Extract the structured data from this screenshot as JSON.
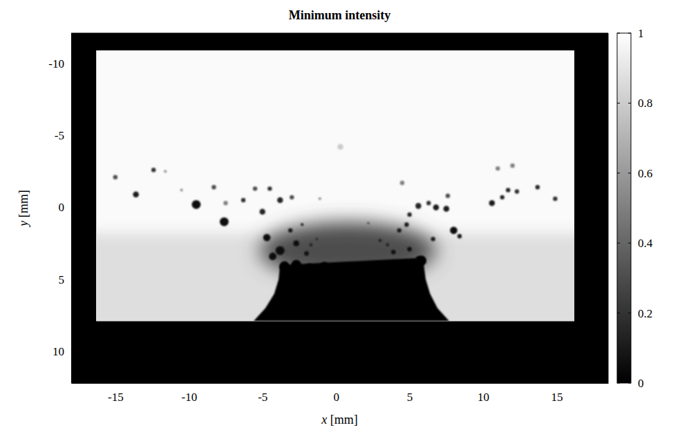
{
  "chart_data": {
    "type": "image",
    "title": "Minimum intensity",
    "x_label": "x [mm]",
    "y_label": "y [mm]",
    "xlim": [
      -18.0,
      18.5
    ],
    "ylim": [
      -12.1,
      12.2
    ],
    "xticks": [
      -15,
      -10,
      -5,
      0,
      5,
      10,
      15
    ],
    "yticks": [
      -10,
      -5,
      0,
      5,
      10
    ],
    "colorbar": {
      "range": [
        0,
        1
      ],
      "ticks": [
        0,
        0.2,
        0.4,
        0.6,
        0.8,
        1
      ]
    },
    "background": 0,
    "field": {
      "x": [
        -16.3,
        16.2
      ],
      "y": [
        -10.9,
        7.9
      ],
      "value": 0.98
    },
    "lower_band": {
      "y": [
        1.8,
        7.9
      ],
      "value": 0.87
    },
    "shadow": {
      "x": 0.8,
      "y": 3.0,
      "rx": 6.0,
      "ry": 2.0,
      "value": 0.3
    },
    "core": {
      "x": [
        -3.8,
        -3.9,
        -4.2,
        -4.8,
        -5.6,
        7.7,
        6.9,
        6.4,
        6.1,
        5.9
      ],
      "y": [
        4.0,
        5.0,
        6.0,
        7.0,
        7.9,
        7.9,
        7.0,
        6.0,
        5.0,
        3.5
      ],
      "value": 0
    },
    "droplets": [
      {
        "x": -15.0,
        "y": -2.1,
        "r": 0.15,
        "value": 0.3
      },
      {
        "x": -13.6,
        "y": -0.9,
        "r": 0.2,
        "value": 0.1
      },
      {
        "x": -12.4,
        "y": -2.6,
        "r": 0.15,
        "value": 0.2
      },
      {
        "x": -11.6,
        "y": -2.5,
        "r": 0.1,
        "value": 0.6
      },
      {
        "x": -10.5,
        "y": -1.2,
        "r": 0.1,
        "value": 0.6
      },
      {
        "x": -9.5,
        "y": -0.2,
        "r": 0.3,
        "value": 0.05
      },
      {
        "x": -8.3,
        "y": -1.4,
        "r": 0.15,
        "value": 0.3
      },
      {
        "x": -7.6,
        "y": 1.0,
        "r": 0.3,
        "value": 0.05
      },
      {
        "x": -7.5,
        "y": -0.3,
        "r": 0.15,
        "value": 0.5
      },
      {
        "x": -6.3,
        "y": -0.5,
        "r": 0.15,
        "value": 0.2
      },
      {
        "x": -5.5,
        "y": -1.3,
        "r": 0.15,
        "value": 0.3
      },
      {
        "x": -5.0,
        "y": 0.3,
        "r": 0.2,
        "value": 0.15
      },
      {
        "x": -4.5,
        "y": -1.3,
        "r": 0.15,
        "value": 0.2
      },
      {
        "x": -3.8,
        "y": -0.5,
        "r": 0.2,
        "value": 0.15
      },
      {
        "x": -3.0,
        "y": -0.7,
        "r": 0.15,
        "value": 0.3
      },
      {
        "x": -1.1,
        "y": -0.6,
        "r": 0.1,
        "value": 0.6
      },
      {
        "x": -4.7,
        "y": 2.1,
        "r": 0.25,
        "value": 0.05
      },
      {
        "x": -3.8,
        "y": 3.0,
        "r": 0.3,
        "value": 0.03
      },
      {
        "x": -4.3,
        "y": 3.4,
        "r": 0.25,
        "value": 0.03
      },
      {
        "x": -2.7,
        "y": 2.5,
        "r": 0.2,
        "value": 0.05
      },
      {
        "x": -3.1,
        "y": 1.6,
        "r": 0.15,
        "value": 0.1
      },
      {
        "x": -2.3,
        "y": 1.2,
        "r": 0.1,
        "value": 0.15
      },
      {
        "x": -2.0,
        "y": 3.2,
        "r": 0.15,
        "value": 0.05
      },
      {
        "x": -1.7,
        "y": 2.6,
        "r": 0.1,
        "value": 0.1
      },
      {
        "x": -1.3,
        "y": 2.2,
        "r": 0.08,
        "value": 0.15
      },
      {
        "x": 0.3,
        "y": -4.2,
        "r": 0.2,
        "value": 0.8
      },
      {
        "x": 2.2,
        "y": 1.1,
        "r": 0.08,
        "value": 0.3
      },
      {
        "x": 3.0,
        "y": 2.3,
        "r": 0.1,
        "value": 0.1
      },
      {
        "x": 3.5,
        "y": 2.6,
        "r": 0.1,
        "value": 0.1
      },
      {
        "x": 3.9,
        "y": 3.1,
        "r": 0.15,
        "value": 0.05
      },
      {
        "x": 4.3,
        "y": 1.6,
        "r": 0.15,
        "value": 0.1
      },
      {
        "x": 4.8,
        "y": 1.2,
        "r": 0.15,
        "value": 0.1
      },
      {
        "x": 5.0,
        "y": 0.5,
        "r": 0.15,
        "value": 0.15
      },
      {
        "x": 4.5,
        "y": -1.7,
        "r": 0.15,
        "value": 0.5
      },
      {
        "x": 5.6,
        "y": -0.1,
        "r": 0.2,
        "value": 0.15
      },
      {
        "x": 5.0,
        "y": 2.9,
        "r": 0.15,
        "value": 0.05
      },
      {
        "x": 5.6,
        "y": 3.6,
        "r": 0.2,
        "value": 0.05
      },
      {
        "x": 6.3,
        "y": -0.3,
        "r": 0.15,
        "value": 0.2
      },
      {
        "x": 6.6,
        "y": 2.2,
        "r": 0.15,
        "value": 0.1
      },
      {
        "x": 6.8,
        "y": 0.0,
        "r": 0.2,
        "value": 0.1
      },
      {
        "x": 7.5,
        "y": 0.1,
        "r": 0.2,
        "value": 0.1
      },
      {
        "x": 7.6,
        "y": -0.8,
        "r": 0.15,
        "value": 0.3
      },
      {
        "x": 8.0,
        "y": 1.6,
        "r": 0.25,
        "value": 0.05
      },
      {
        "x": 8.4,
        "y": 2.0,
        "r": 0.15,
        "value": 0.1
      },
      {
        "x": 10.6,
        "y": -0.3,
        "r": 0.2,
        "value": 0.1
      },
      {
        "x": 11.0,
        "y": -2.7,
        "r": 0.15,
        "value": 0.5
      },
      {
        "x": 11.3,
        "y": -0.7,
        "r": 0.15,
        "value": 0.15
      },
      {
        "x": 11.7,
        "y": -1.2,
        "r": 0.15,
        "value": 0.15
      },
      {
        "x": 12.0,
        "y": -2.9,
        "r": 0.15,
        "value": 0.5
      },
      {
        "x": 12.3,
        "y": -1.1,
        "r": 0.15,
        "value": 0.2
      },
      {
        "x": 13.7,
        "y": -1.4,
        "r": 0.15,
        "value": 0.15
      },
      {
        "x": 14.9,
        "y": -0.6,
        "r": 0.15,
        "value": 0.2
      },
      {
        "x": -3.5,
        "y": 4.1,
        "r": 0.35,
        "value": 0
      },
      {
        "x": -2.7,
        "y": 4.0,
        "r": 0.35,
        "value": 0
      },
      {
        "x": -1.8,
        "y": 4.2,
        "r": 0.3,
        "value": 0
      },
      {
        "x": -0.8,
        "y": 4.1,
        "r": 0.3,
        "value": 0
      },
      {
        "x": 0.3,
        "y": 4.2,
        "r": 0.3,
        "value": 0
      },
      {
        "x": 1.5,
        "y": 4.2,
        "r": 0.3,
        "value": 0
      },
      {
        "x": 2.8,
        "y": 4.1,
        "r": 0.35,
        "value": 0
      },
      {
        "x": 3.9,
        "y": 4.0,
        "r": 0.3,
        "value": 0
      },
      {
        "x": 4.9,
        "y": 4.0,
        "r": 0.3,
        "value": 0
      },
      {
        "x": 5.8,
        "y": 3.7,
        "r": 0.35,
        "value": 0
      }
    ]
  }
}
